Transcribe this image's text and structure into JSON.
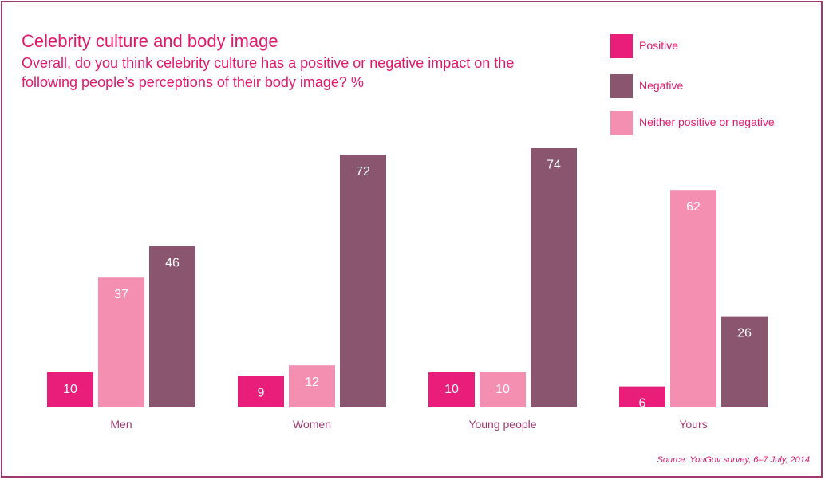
{
  "title": "Celebrity culture and body image",
  "subtitle": "Overall, do you think celebrity culture has a positive or negative impact on the following people’s perceptions of their body image? %",
  "source": "Source: YouGov survey, 6–7 July, 2014",
  "legend": [
    {
      "label": "Positive",
      "color": "#e91e7a"
    },
    {
      "label": "Negative",
      "color": "#8a566f"
    },
    {
      "label": "Neither positive or negative",
      "color": "#f48fb1"
    }
  ],
  "chart_data": {
    "type": "bar",
    "title": "Celebrity culture and body image",
    "subtitle": "Overall, do you think celebrity culture has a positive or negative impact on the following people’s perceptions of their body image? %",
    "categories": [
      "Men",
      "Women",
      "Young people",
      "Yours"
    ],
    "series": [
      {
        "name": "Positive",
        "color": "#e91e7a",
        "values": [
          10,
          9,
          10,
          6
        ]
      },
      {
        "name": "Neither positive or negative",
        "color": "#f48fb1",
        "values": [
          37,
          12,
          10,
          62
        ]
      },
      {
        "name": "Negative",
        "color": "#8a566f",
        "values": [
          46,
          72,
          74,
          26
        ]
      }
    ],
    "bar_order_per_category": [
      [
        "Positive",
        "Neither positive or negative",
        "Negative"
      ],
      [
        "Positive",
        "Neither positive or negative",
        "Negative"
      ],
      [
        "Positive",
        "Neither positive or negative",
        "Negative"
      ],
      [
        "Positive",
        "Neither positive or negative",
        "Negative"
      ]
    ],
    "ylim": [
      0,
      100
    ],
    "xlabel": "",
    "ylabel": "",
    "grid": false,
    "legend_position": "top-right"
  }
}
